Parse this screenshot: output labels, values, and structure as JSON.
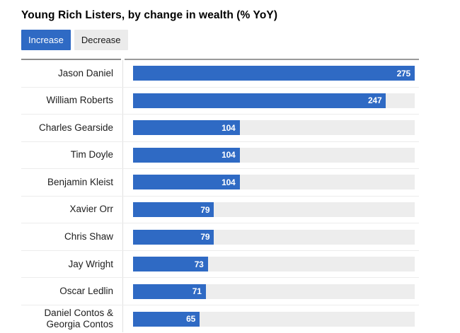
{
  "title": "Young Rich Listers, by change in wealth (% YoY)",
  "tabs": [
    {
      "label": "Increase",
      "active": true
    },
    {
      "label": "Decrease",
      "active": false
    }
  ],
  "colors": {
    "bar_accent": "#2f6ac4",
    "active_tab_bg": "#2f6ac4",
    "inactive_tab_bg": "#ebebeb",
    "bar_track": "#ededed",
    "top_border": "#8c8c8c",
    "row_separator": "#ececec"
  },
  "chart_data": {
    "type": "bar",
    "orientation": "horizontal",
    "title": "Young Rich Listers, by change in wealth (% YoY)",
    "selected_series": "Increase",
    "categories": [
      "Jason Daniel",
      "William Roberts",
      "Charles Gearside",
      "Tim Doyle",
      "Benjamin Kleist",
      "Xavier Orr",
      "Chris Shaw",
      "Jay Wright",
      "Oscar Ledlin",
      "Daniel Contos & Georgia Contos"
    ],
    "values": [
      275,
      247,
      104,
      104,
      104,
      79,
      79,
      73,
      71,
      65
    ],
    "xlabel": "",
    "ylabel": "",
    "xlim": [
      0,
      275
    ],
    "grid": false,
    "legend_position": "none",
    "value_labels": "inside-end"
  }
}
